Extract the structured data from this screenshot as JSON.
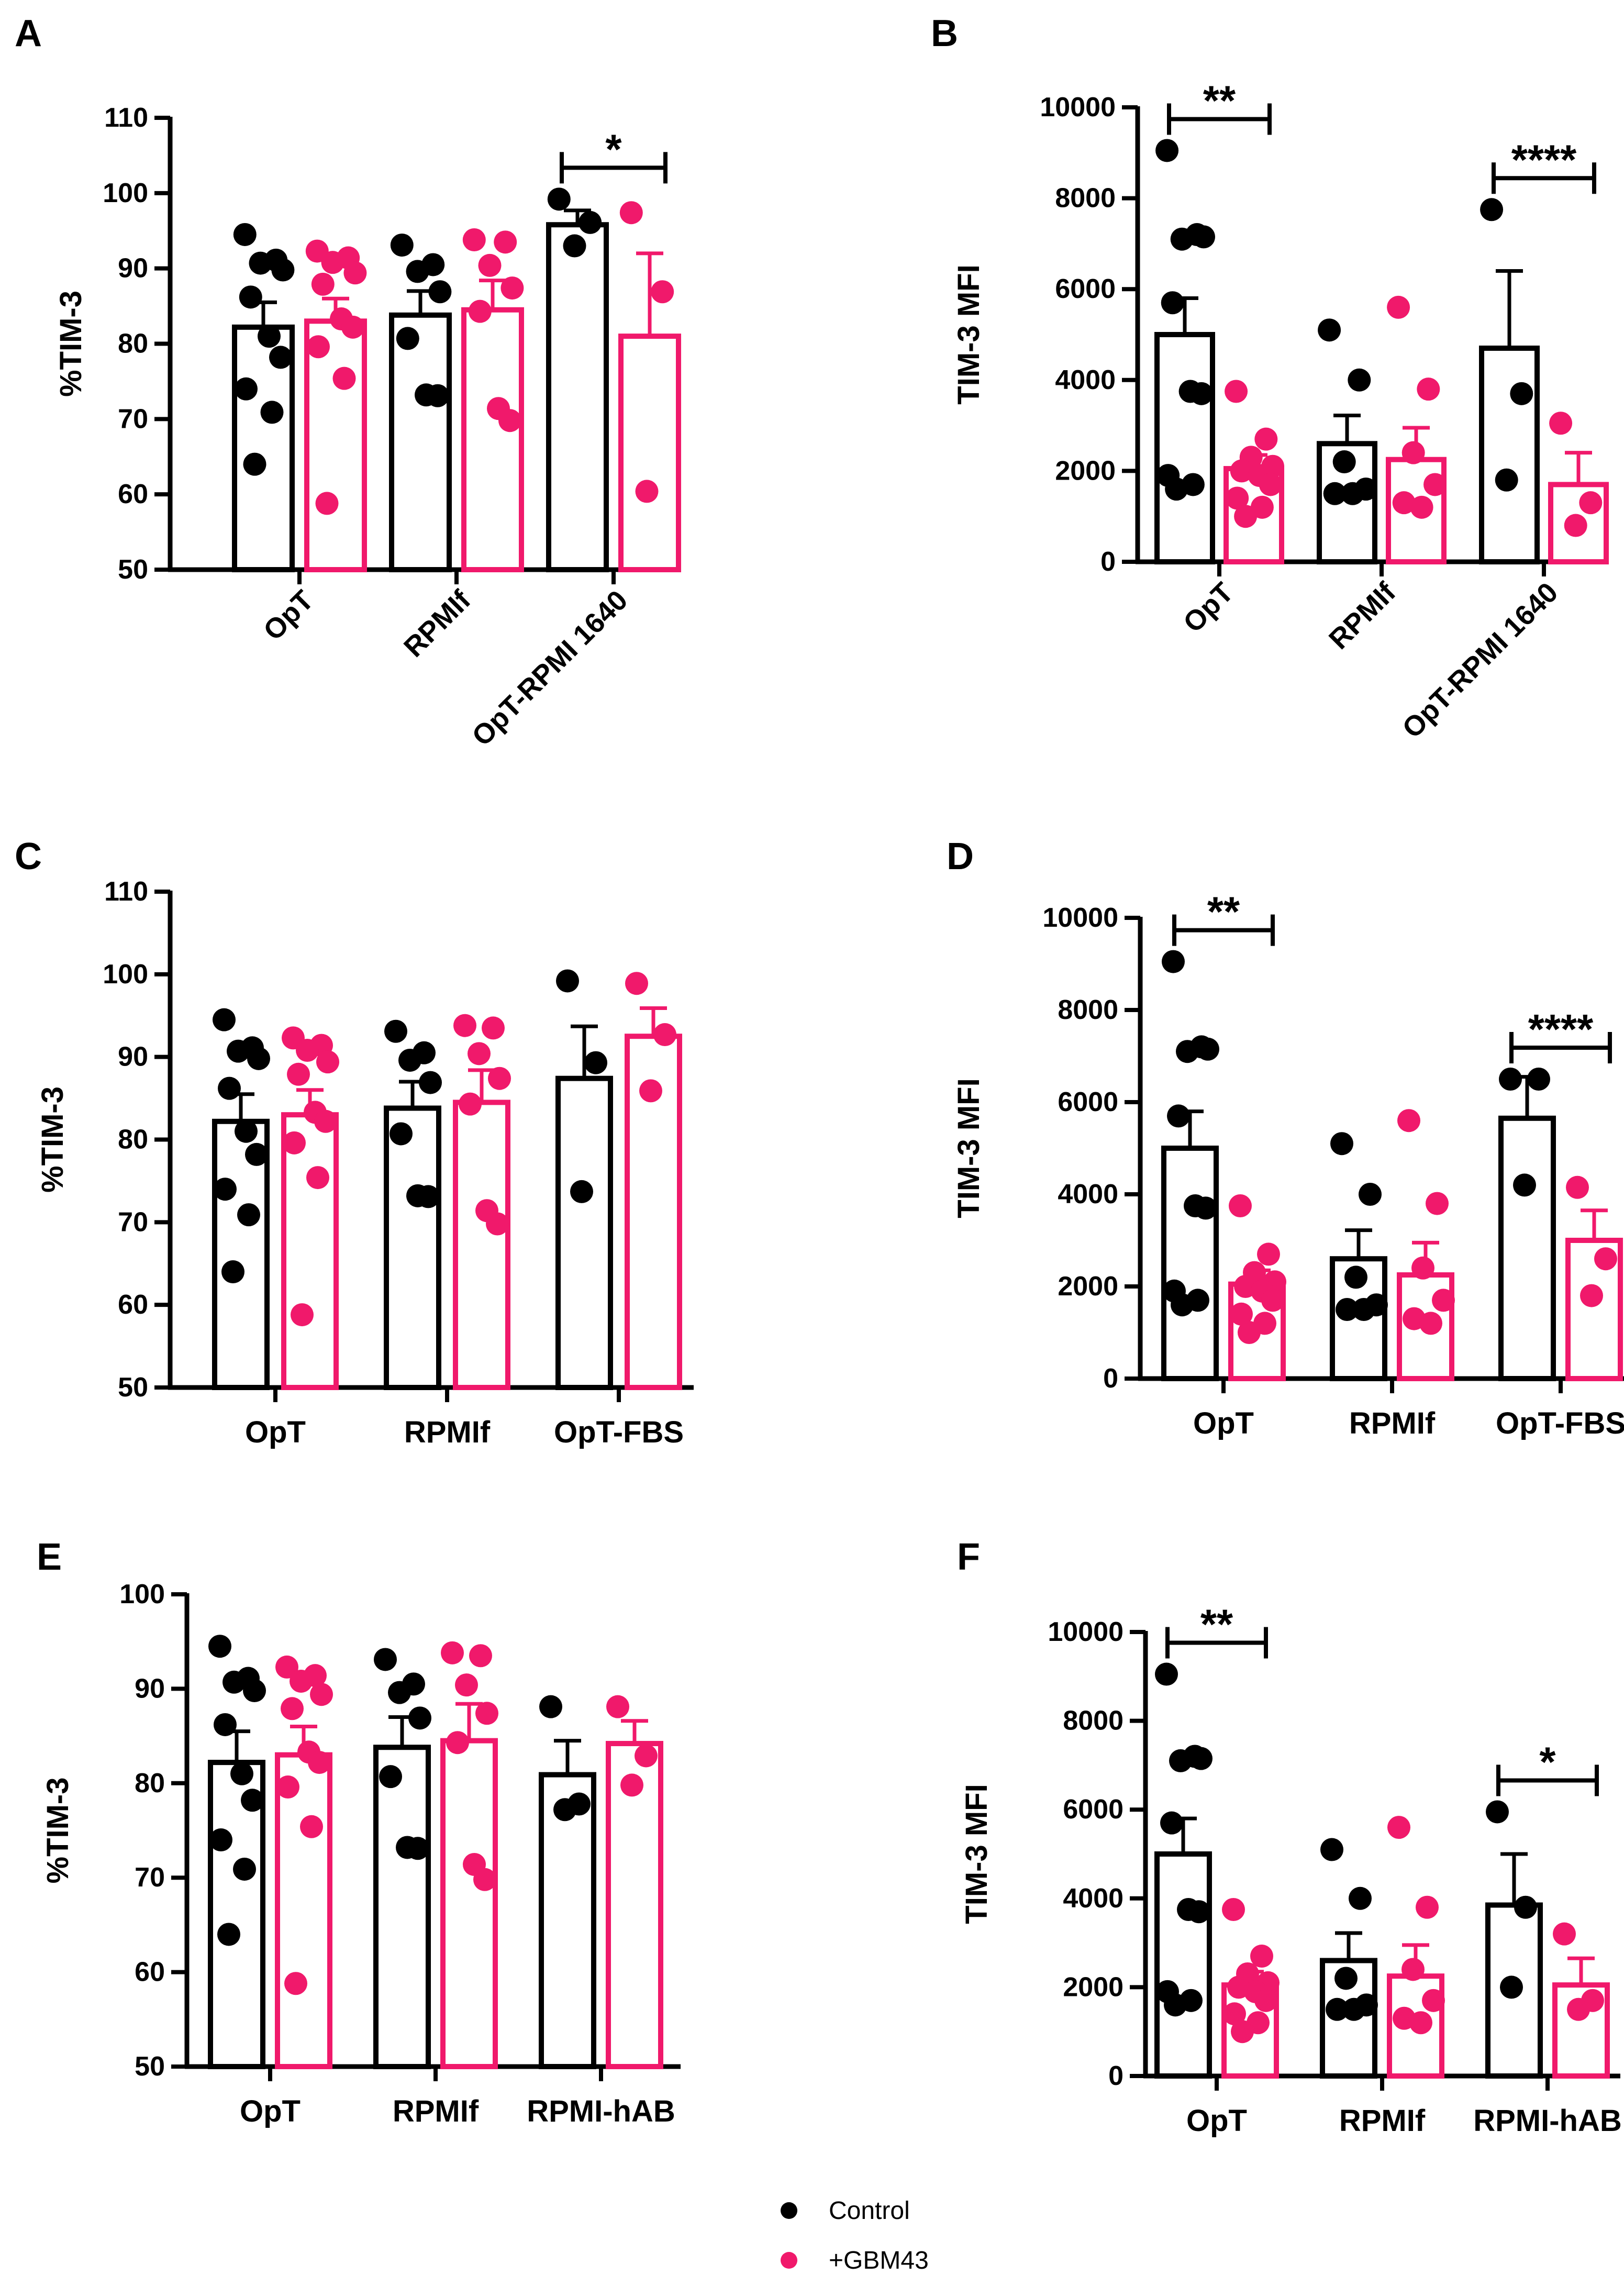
{
  "colors": {
    "control": "#000000",
    "treatment": "#f0196b",
    "axis": "#000000"
  },
  "legend": {
    "items": [
      {
        "label": "Control",
        "color": "#000000"
      },
      {
        "label": "+GBM43",
        "color": "#f0196b"
      }
    ]
  },
  "chart_data": [
    {
      "panel": "A",
      "type": "bar",
      "ylabel": "%TIM-3",
      "ylim": [
        50,
        110
      ],
      "yticks": [
        "50",
        "60",
        "70",
        "80",
        "90",
        "100",
        "110"
      ],
      "categories": [
        "OpT",
        "RPMIf",
        "OpT-RPMI 1640"
      ],
      "xtick_rotation": -45,
      "series": [
        {
          "name": "Control",
          "means": [
            82.2,
            83.8,
            95.8
          ],
          "sem": [
            3.3,
            3.2,
            1.9
          ],
          "points": [
            [
              94.5,
              91.1,
              90.7,
              89.8,
              86.2,
              81.0,
              78.2,
              74.0,
              70.9,
              64.0
            ],
            [
              93.1,
              90.5,
              89.6,
              86.9,
              80.7,
              73.2,
              73.1
            ],
            [
              99.2,
              96.1,
              93.0
            ]
          ]
        },
        {
          "name": "+GBM43",
          "means": [
            83.0,
            84.5,
            81.0
          ],
          "sem": [
            3.0,
            3.9,
            11.0
          ],
          "points": [
            [
              92.3,
              91.4,
              90.8,
              89.4,
              87.9,
              83.3,
              82.2,
              79.6,
              75.4,
              58.8
            ],
            [
              93.8,
              93.5,
              90.4,
              87.4,
              84.3,
              71.4,
              69.8
            ],
            [
              97.4,
              86.9,
              60.4
            ]
          ]
        }
      ],
      "significance": [
        {
          "category": 2,
          "label": "*"
        }
      ]
    },
    {
      "panel": "B",
      "type": "bar",
      "ylabel": "TIM-3 MFI",
      "ylim": [
        0,
        10000
      ],
      "yticks": [
        "0",
        "2000",
        "4000",
        "6000",
        "8000",
        "10000"
      ],
      "categories": [
        "OpT",
        "RPMIf",
        "OpT-RPMI 1640"
      ],
      "xtick_rotation": -45,
      "series": [
        {
          "name": "Control",
          "means": [
            5000,
            2600,
            4700
          ],
          "sem": [
            800,
            620,
            1700
          ],
          "points": [
            [
              9050,
              7200,
              7100,
              7150,
              5700,
              3750,
              3700,
              1900,
              1700,
              1600
            ],
            [
              5100,
              4000,
              2200,
              1600,
              1500,
              1500
            ],
            [
              7750,
              3700,
              1800
            ]
          ]
        },
        {
          "name": "+GBM43",
          "means": [
            2050,
            2250,
            1700
          ],
          "sem": [
            300,
            700,
            700
          ],
          "points": [
            [
              3750,
              2700,
              2300,
              2100,
              2000,
              1900,
              1700,
              1400,
              1200,
              1000
            ],
            [
              5600,
              3800,
              2400,
              1700,
              1300,
              1200
            ],
            [
              3050,
              1300,
              800
            ]
          ]
        }
      ],
      "significance": [
        {
          "category": 0,
          "label": "**"
        },
        {
          "category": 2,
          "label": "****"
        }
      ]
    },
    {
      "panel": "C",
      "type": "bar",
      "ylabel": "%TIM-3",
      "ylim": [
        50,
        110
      ],
      "yticks": [
        "50",
        "60",
        "70",
        "80",
        "90",
        "100",
        "110"
      ],
      "categories": [
        "OpT",
        "RPMIf",
        "OpT-FBS"
      ],
      "xtick_rotation": 0,
      "series": [
        {
          "name": "Control",
          "means": [
            82.2,
            83.8,
            87.4
          ],
          "sem": [
            3.3,
            3.2,
            6.3
          ],
          "points": [
            [
              94.5,
              91.1,
              90.7,
              89.8,
              86.2,
              81.0,
              78.2,
              74.0,
              70.9,
              64.0
            ],
            [
              93.1,
              90.5,
              89.6,
              86.9,
              80.7,
              73.2,
              73.1
            ],
            [
              99.2,
              89.3,
              73.7
            ]
          ]
        },
        {
          "name": "+GBM43",
          "means": [
            83.0,
            84.5,
            92.5
          ],
          "sem": [
            3.0,
            3.9,
            3.4
          ],
          "points": [
            [
              92.3,
              91.4,
              90.8,
              89.4,
              87.9,
              83.3,
              82.2,
              79.6,
              75.4,
              58.8
            ],
            [
              93.8,
              93.5,
              90.4,
              87.4,
              84.3,
              71.4,
              69.8
            ],
            [
              98.9,
              92.7,
              85.9
            ]
          ]
        }
      ],
      "significance": []
    },
    {
      "panel": "D",
      "type": "bar",
      "ylabel": "TIM-3 MFI",
      "ylim": [
        0,
        10000
      ],
      "yticks": [
        "0",
        "2000",
        "4000",
        "6000",
        "8000",
        "10000"
      ],
      "categories": [
        "OpT",
        "RPMIf",
        "OpT-FBS"
      ],
      "xtick_rotation": 0,
      "series": [
        {
          "name": "Control",
          "means": [
            5000,
            2600,
            5650
          ],
          "sem": [
            800,
            620,
            900
          ],
          "points": [
            [
              9050,
              7200,
              7100,
              7150,
              5700,
              3750,
              3700,
              1900,
              1700,
              1600
            ],
            [
              5100,
              4000,
              2200,
              1600,
              1500,
              1500
            ],
            [
              6500,
              6500,
              4200
            ]
          ]
        },
        {
          "name": "+GBM43",
          "means": [
            2050,
            2250,
            3000
          ],
          "sem": [
            300,
            700,
            650
          ],
          "points": [
            [
              3750,
              2700,
              2300,
              2100,
              2000,
              1900,
              1700,
              1400,
              1200,
              1000
            ],
            [
              5600,
              3800,
              2400,
              1700,
              1300,
              1200
            ],
            [
              4150,
              2600,
              1800
            ]
          ]
        }
      ],
      "significance": [
        {
          "category": 0,
          "label": "**"
        },
        {
          "category": 2,
          "label": "****"
        }
      ]
    },
    {
      "panel": "E",
      "type": "bar",
      "ylabel": "%TIM-3",
      "ylim": [
        50,
        100
      ],
      "yticks": [
        "50",
        "60",
        "70",
        "80",
        "90",
        "100"
      ],
      "categories": [
        "OpT",
        "RPMIf",
        "RPMI-hAB"
      ],
      "xtick_rotation": 0,
      "series": [
        {
          "name": "Control",
          "means": [
            82.2,
            83.8,
            80.9
          ],
          "sem": [
            3.3,
            3.2,
            3.6
          ],
          "points": [
            [
              94.5,
              91.1,
              90.7,
              89.8,
              86.2,
              81.0,
              78.2,
              74.0,
              70.9,
              64.0
            ],
            [
              93.1,
              90.5,
              89.6,
              86.9,
              80.7,
              73.2,
              73.1
            ],
            [
              88.1,
              77.8,
              77.2
            ]
          ]
        },
        {
          "name": "+GBM43",
          "means": [
            83.0,
            84.5,
            84.2
          ],
          "sem": [
            3.0,
            3.9,
            2.4
          ],
          "points": [
            [
              92.3,
              91.4,
              90.8,
              89.4,
              87.9,
              83.3,
              82.2,
              79.6,
              75.4,
              58.8
            ],
            [
              93.8,
              93.5,
              90.4,
              87.4,
              84.3,
              71.4,
              69.8
            ],
            [
              88.1,
              82.9,
              79.8
            ]
          ]
        }
      ],
      "significance": []
    },
    {
      "panel": "F",
      "type": "bar",
      "ylabel": "TIM-3 MFI",
      "ylim": [
        0,
        10000
      ],
      "yticks": [
        "0",
        "2000",
        "4000",
        "6000",
        "8000",
        "10000"
      ],
      "categories": [
        "OpT",
        "RPMIf",
        "RPMI-hAB"
      ],
      "xtick_rotation": 0,
      "series": [
        {
          "name": "Control",
          "means": [
            5000,
            2600,
            3850
          ],
          "sem": [
            800,
            620,
            1150
          ],
          "points": [
            [
              9050,
              7200,
              7100,
              7150,
              5700,
              3750,
              3700,
              1900,
              1700,
              1600
            ],
            [
              5100,
              4000,
              2200,
              1600,
              1500,
              1500
            ],
            [
              5950,
              3800,
              2000
            ]
          ]
        },
        {
          "name": "+GBM43",
          "means": [
            2050,
            2250,
            2050
          ],
          "sem": [
            300,
            700,
            600
          ],
          "points": [
            [
              3750,
              2700,
              2300,
              2100,
              2000,
              1900,
              1700,
              1400,
              1200,
              1000
            ],
            [
              5600,
              3800,
              2400,
              1700,
              1300,
              1200
            ],
            [
              3200,
              1700,
              1500
            ]
          ]
        }
      ],
      "significance": [
        {
          "category": 0,
          "label": "**"
        },
        {
          "category": 2,
          "label": "*"
        }
      ]
    }
  ]
}
